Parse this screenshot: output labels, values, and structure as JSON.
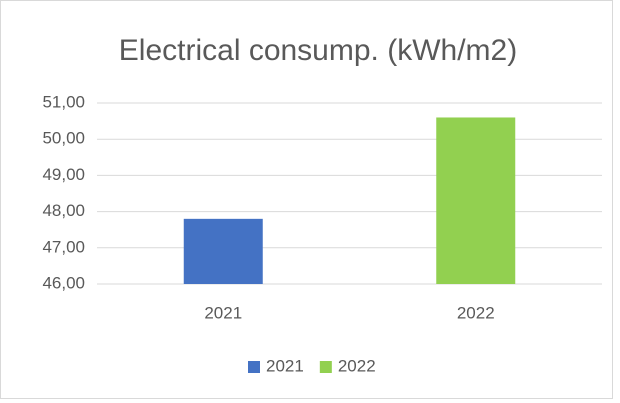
{
  "chart_data": {
    "type": "bar",
    "title": "Electrical consump. (kWh/m2)",
    "categories": [
      "2021",
      "2022"
    ],
    "series": [
      {
        "name": "2021",
        "color": "#4472c4",
        "values": [
          47.8,
          null
        ]
      },
      {
        "name": "2022",
        "color": "#92d050",
        "values": [
          null,
          50.6
        ]
      }
    ],
    "ylim": [
      46,
      51
    ],
    "yticks": [
      {
        "value": 46,
        "label": "46,00"
      },
      {
        "value": 47,
        "label": "47,00"
      },
      {
        "value": 48,
        "label": "48,00"
      },
      {
        "value": 49,
        "label": "49,00"
      },
      {
        "value": 50,
        "label": "50,00"
      },
      {
        "value": 51,
        "label": "51,00"
      }
    ],
    "grid": true,
    "legend": "bottom"
  }
}
